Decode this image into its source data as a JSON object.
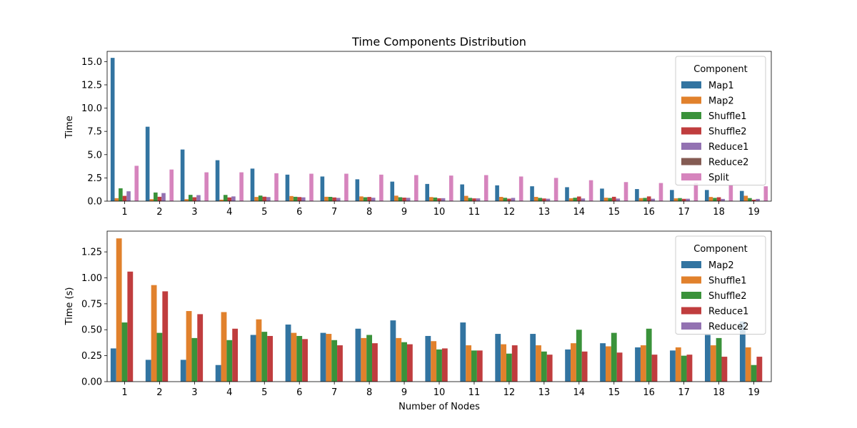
{
  "colors": {
    "Map1": "#3274a1",
    "Map2": "#e1812c",
    "Shuffle1": "#3a923a",
    "Shuffle2": "#c03d3e",
    "Reduce1": "#9372b2",
    "Reduce2": "#845b53",
    "Split": "#d684bd"
  },
  "chart_data": [
    {
      "type": "bar",
      "title": "Time Components Distribution",
      "xlabel": "",
      "ylabel": "Time",
      "ylim": [
        0,
        16.1
      ],
      "yticks": [
        "0.0",
        "2.5",
        "5.0",
        "7.5",
        "10.0",
        "12.5",
        "15.0"
      ],
      "ytick_values": [
        0,
        2.5,
        5,
        7.5,
        10,
        12.5,
        15
      ],
      "categories": [
        "1",
        "2",
        "3",
        "4",
        "5",
        "6",
        "7",
        "8",
        "9",
        "10",
        "11",
        "12",
        "13",
        "14",
        "15",
        "16",
        "17",
        "18",
        "19"
      ],
      "legend_title": "Component",
      "legend_position": "upper right",
      "series": [
        {
          "name": "Map1",
          "color": "#3274a1",
          "values": [
            15.4,
            8.0,
            5.55,
            4.4,
            3.5,
            2.85,
            2.65,
            2.35,
            2.1,
            1.85,
            1.8,
            1.7,
            1.6,
            1.5,
            1.35,
            1.3,
            1.2,
            1.2,
            1.1
          ]
        },
        {
          "name": "Map2",
          "color": "#e1812c",
          "values": [
            0.32,
            0.21,
            0.21,
            0.16,
            0.45,
            0.55,
            0.47,
            0.51,
            0.59,
            0.44,
            0.57,
            0.46,
            0.46,
            0.31,
            0.37,
            0.33,
            0.3,
            0.45,
            0.58
          ]
        },
        {
          "name": "Shuffle1",
          "color": "#3a923a",
          "values": [
            1.38,
            0.93,
            0.68,
            0.67,
            0.6,
            0.47,
            0.46,
            0.42,
            0.42,
            0.39,
            0.35,
            0.36,
            0.35,
            0.37,
            0.34,
            0.35,
            0.33,
            0.35,
            0.33
          ]
        },
        {
          "name": "Shuffle2",
          "color": "#c03d3e",
          "values": [
            0.57,
            0.47,
            0.42,
            0.4,
            0.48,
            0.44,
            0.4,
            0.45,
            0.38,
            0.31,
            0.3,
            0.27,
            0.29,
            0.5,
            0.47,
            0.51,
            0.25,
            0.42,
            0.16
          ]
        },
        {
          "name": "Reduce1",
          "color": "#9372b2",
          "values": [
            1.06,
            0.87,
            0.65,
            0.51,
            0.44,
            0.41,
            0.35,
            0.37,
            0.36,
            0.32,
            0.3,
            0.35,
            0.26,
            0.29,
            0.28,
            0.26,
            0.26,
            0.24,
            0.24
          ]
        },
        {
          "name": "Reduce2",
          "color": "#845b53",
          "values": [
            0.02,
            0.02,
            0.02,
            0.02,
            0.02,
            0.02,
            0.02,
            0.02,
            0.02,
            0.02,
            0.02,
            0.02,
            0.02,
            0.02,
            0.02,
            0.02,
            0.02,
            0.02,
            0.02
          ]
        },
        {
          "name": "Split",
          "color": "#d684bd",
          "values": [
            3.8,
            3.4,
            3.1,
            3.1,
            3.0,
            2.95,
            2.95,
            2.85,
            2.8,
            2.75,
            2.8,
            2.65,
            2.5,
            2.25,
            2.05,
            1.95,
            1.95,
            1.75,
            1.6
          ]
        }
      ]
    },
    {
      "type": "bar",
      "title": "",
      "xlabel": "Number of Nodes",
      "ylabel": "Time (s)",
      "ylim": [
        0,
        1.45
      ],
      "yticks": [
        "0.00",
        "0.25",
        "0.50",
        "0.75",
        "1.00",
        "1.25"
      ],
      "ytick_values": [
        0,
        0.25,
        0.5,
        0.75,
        1.0,
        1.25
      ],
      "categories": [
        "1",
        "2",
        "3",
        "4",
        "5",
        "6",
        "7",
        "8",
        "9",
        "10",
        "11",
        "12",
        "13",
        "14",
        "15",
        "16",
        "17",
        "18",
        "19"
      ],
      "legend_title": "Component",
      "legend_position": "upper right",
      "series": [
        {
          "name": "Map2",
          "color": "#3274a1",
          "values": [
            0.32,
            0.21,
            0.21,
            0.16,
            0.45,
            0.55,
            0.47,
            0.51,
            0.59,
            0.44,
            0.57,
            0.46,
            0.46,
            0.31,
            0.37,
            0.33,
            0.3,
            0.45,
            0.58
          ]
        },
        {
          "name": "Shuffle1",
          "color": "#e1812c",
          "values": [
            1.38,
            0.93,
            0.68,
            0.67,
            0.6,
            0.47,
            0.46,
            0.42,
            0.42,
            0.39,
            0.35,
            0.36,
            0.35,
            0.37,
            0.34,
            0.35,
            0.33,
            0.35,
            0.33
          ]
        },
        {
          "name": "Shuffle2",
          "color": "#3a923a",
          "values": [
            0.57,
            0.47,
            0.42,
            0.4,
            0.48,
            0.44,
            0.4,
            0.45,
            0.38,
            0.31,
            0.3,
            0.27,
            0.29,
            0.5,
            0.47,
            0.51,
            0.25,
            0.42,
            0.16
          ]
        },
        {
          "name": "Reduce1",
          "color": "#c03d3e",
          "values": [
            1.06,
            0.87,
            0.65,
            0.51,
            0.44,
            0.41,
            0.35,
            0.37,
            0.36,
            0.32,
            0.3,
            0.35,
            0.26,
            0.29,
            0.28,
            0.26,
            0.26,
            0.24,
            0.24
          ]
        },
        {
          "name": "Reduce2",
          "color": "#9372b2",
          "values": [
            0.0,
            0.0,
            0.0,
            0.0,
            0.0,
            0.0,
            0.0,
            0.0,
            0.0,
            0.0,
            0.0,
            0.0,
            0.0,
            0.0,
            0.0,
            0.0,
            0.0,
            0.0,
            0.0
          ]
        }
      ]
    }
  ]
}
